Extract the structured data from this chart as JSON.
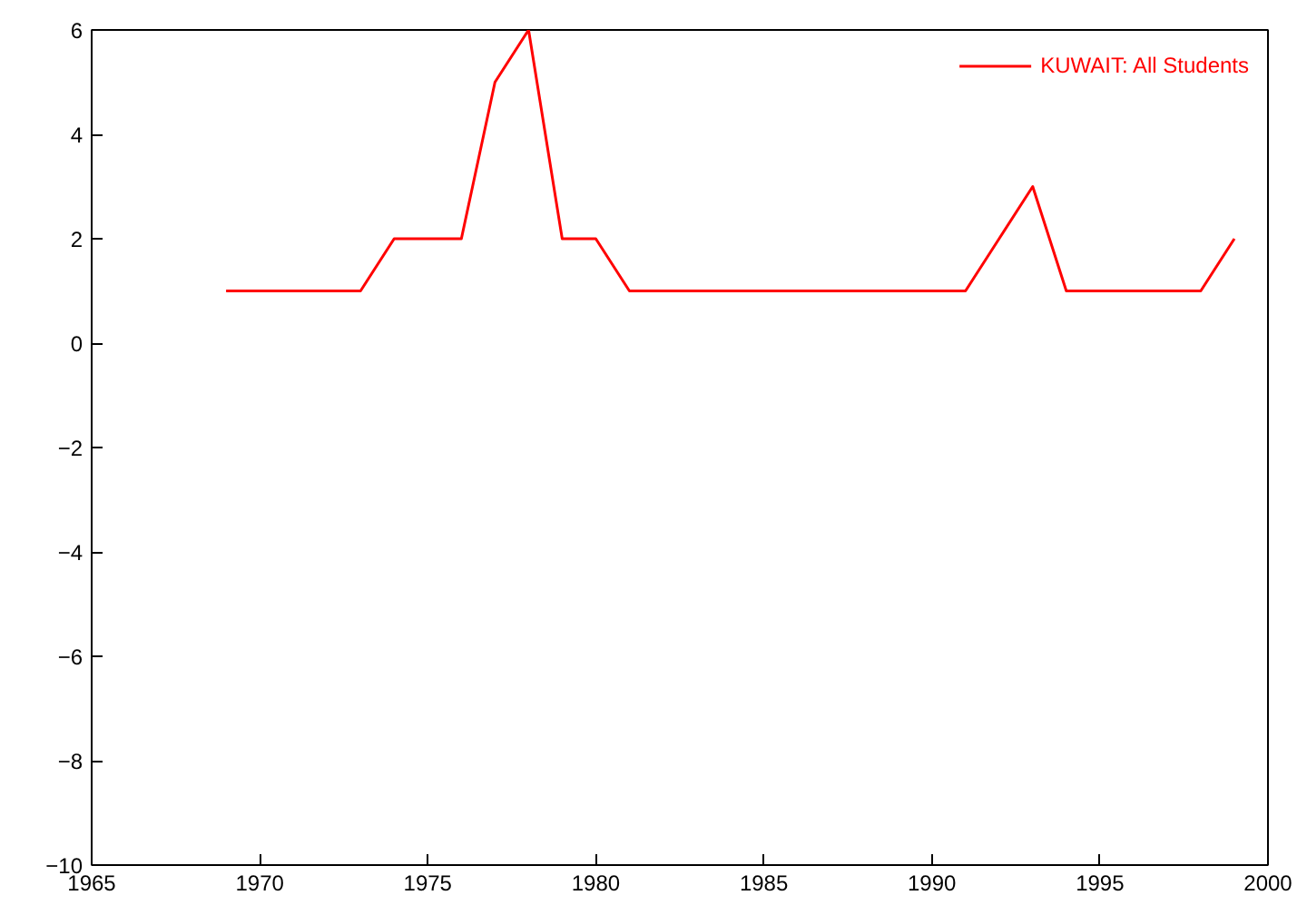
{
  "chart_data": {
    "type": "line",
    "x": [
      1969,
      1970,
      1971,
      1972,
      1973,
      1974,
      1975,
      1976,
      1977,
      1978,
      1979,
      1980,
      1981,
      1982,
      1983,
      1984,
      1985,
      1986,
      1987,
      1988,
      1989,
      1990,
      1991,
      1992,
      1993,
      1994,
      1995,
      1996,
      1997,
      1998,
      1999
    ],
    "series": [
      {
        "name": "KUWAIT: All Students",
        "color": "#ff0000",
        "values": [
          1,
          1,
          1,
          1,
          1,
          2,
          2,
          2,
          5,
          6,
          2,
          2,
          1,
          1,
          1,
          1,
          1,
          1,
          1,
          1,
          1,
          1,
          1,
          2,
          3,
          1,
          1,
          1,
          1,
          1,
          2
        ]
      }
    ],
    "xlim": [
      1965,
      2000
    ],
    "xticks": [
      1965,
      1970,
      1975,
      1980,
      1985,
      1990,
      1995,
      2000
    ],
    "ylim": [
      -10,
      6
    ],
    "yticks": [
      -10,
      -8,
      -6,
      -4,
      -2,
      0,
      2,
      4,
      6
    ],
    "grid": false,
    "legend": "top right",
    "marker": "none",
    "line_style": "solid"
  }
}
